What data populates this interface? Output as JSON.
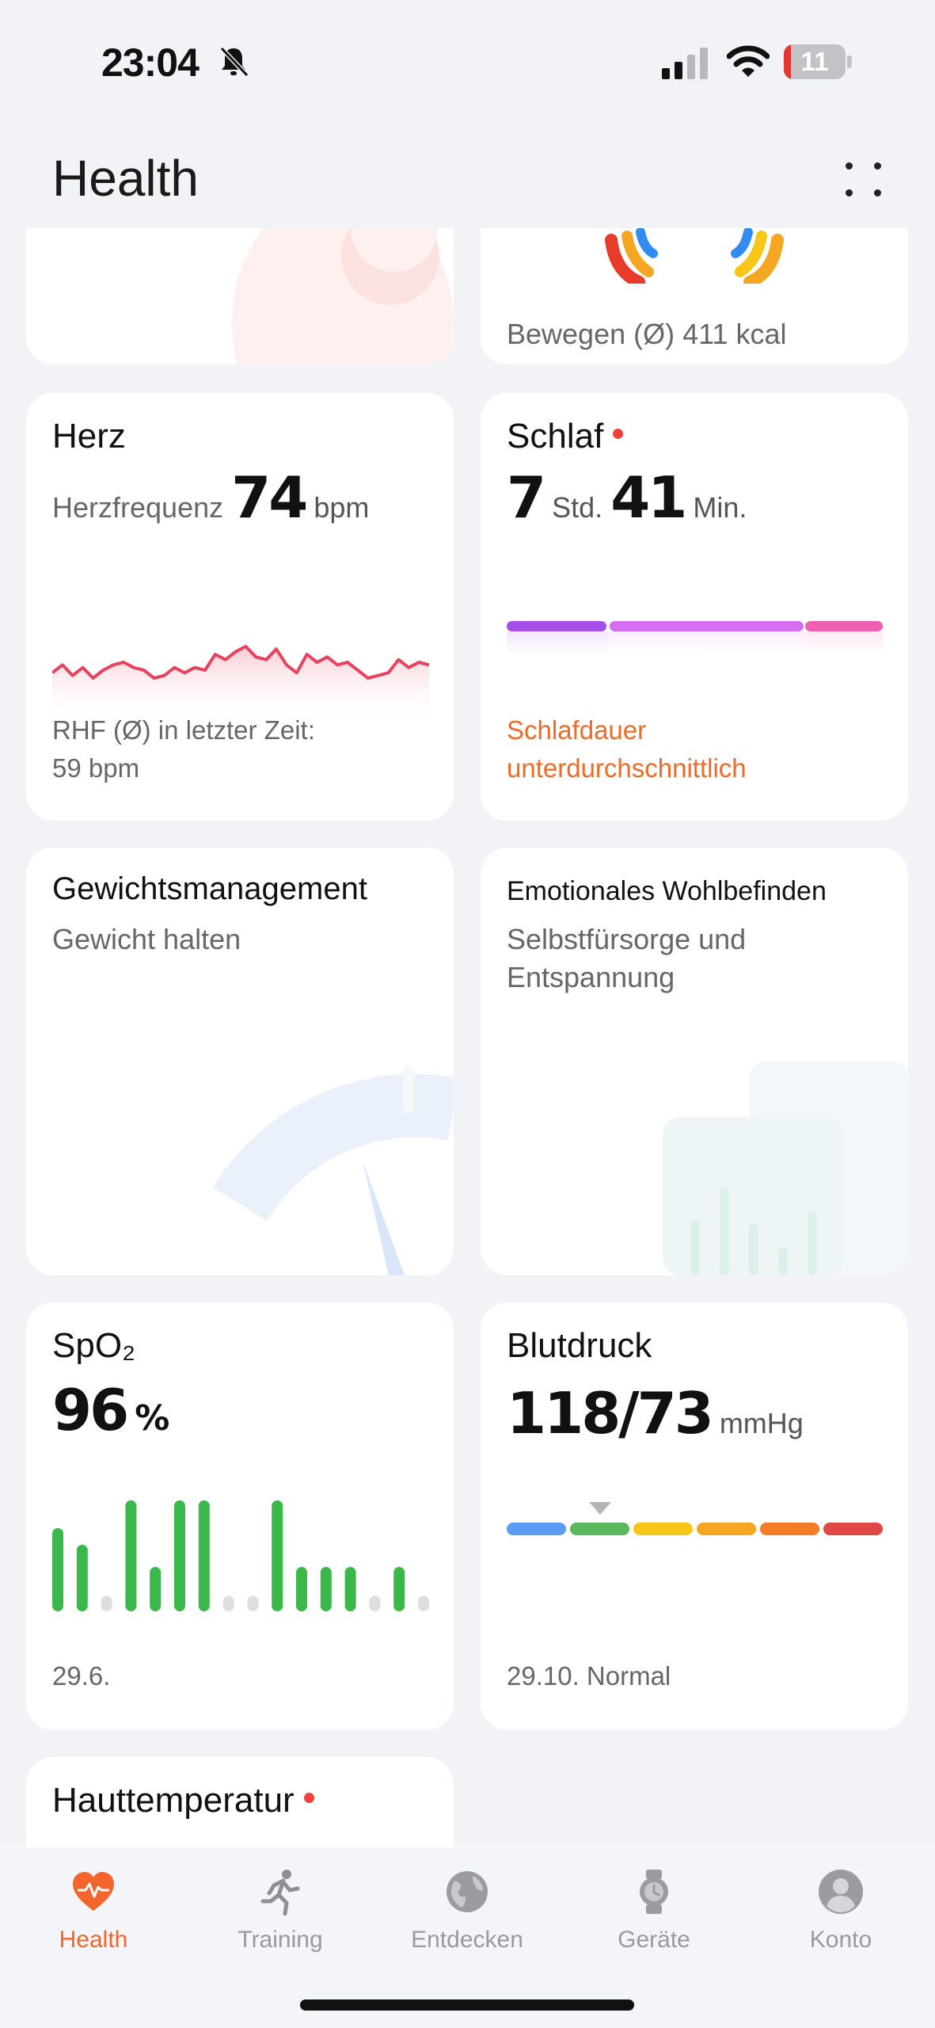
{
  "status": {
    "time": "23:04",
    "battery": "11",
    "battery_level": 0.11
  },
  "header": {
    "title": "Health"
  },
  "cards": {
    "top_right": {
      "text": "Bewegen (Ø) 411 kcal"
    },
    "heart": {
      "title": "Herz",
      "label": "Herzfrequenz",
      "value": "74",
      "unit": "bpm",
      "foot_line1": "RHF (Ø) in letzter Zeit:",
      "foot_line2": "59 bpm",
      "series": [
        65,
        68,
        64,
        67,
        63,
        66,
        68,
        69,
        67,
        66,
        63,
        64,
        67,
        65,
        67,
        66,
        72,
        70,
        73,
        75,
        71,
        70,
        74,
        68,
        65,
        72,
        69,
        71,
        68,
        69,
        66,
        63,
        64,
        65,
        70,
        67,
        69,
        68
      ]
    },
    "sleep": {
      "title": "Schlaf",
      "hours": "7",
      "hours_unit": "Std.",
      "minutes": "41",
      "minutes_unit": "Min.",
      "foot_line1": "Schlafdauer",
      "foot_line2": "unterdurchschnittlich",
      "segments": [
        {
          "fraction": 0.27,
          "color": "#a64fe8"
        },
        {
          "fraction": 0.52,
          "color": "#d56ef0"
        },
        {
          "fraction": 0.21,
          "color": "#ee5fb0"
        }
      ]
    },
    "weight": {
      "title": "Gewichtsmanagement",
      "subtitle": "Gewicht halten"
    },
    "emotion": {
      "title": "Emotionales Wohlbefinden",
      "subtitle_line1": "Selbstfürsorge und",
      "subtitle_line2": "Entspannung"
    },
    "spo2": {
      "title": "SpO₂",
      "value": "96",
      "unit": "%",
      "date": "29.6.",
      "bars": [
        {
          "level": 0.75,
          "active": true
        },
        {
          "level": 0.6,
          "active": true
        },
        {
          "level": 0.14,
          "active": false
        },
        {
          "level": 1.0,
          "active": true
        },
        {
          "level": 0.4,
          "active": true
        },
        {
          "level": 1.0,
          "active": true
        },
        {
          "level": 1.0,
          "active": true
        },
        {
          "level": 0.14,
          "active": false
        },
        {
          "level": 0.14,
          "active": false
        },
        {
          "level": 1.0,
          "active": true
        },
        {
          "level": 0.4,
          "active": true
        },
        {
          "level": 0.4,
          "active": true
        },
        {
          "level": 0.4,
          "active": true
        },
        {
          "level": 0.14,
          "active": false
        },
        {
          "level": 0.4,
          "active": true
        },
        {
          "level": 0.14,
          "active": false
        }
      ]
    },
    "blood_pressure": {
      "title": "Blutdruck",
      "value": "118/73",
      "unit": "mmHg",
      "foot": "29.10. Normal",
      "marker_segment": 1,
      "segments": [
        "#5b9cf2",
        "#5cb85c",
        "#f5c518",
        "#f5a623",
        "#f27c28",
        "#e04848"
      ]
    },
    "skin_temp": {
      "title": "Hauttemperatur"
    }
  },
  "tabs": [
    {
      "label": "Health",
      "icon": "heart-icon",
      "active": true
    },
    {
      "label": "Training",
      "icon": "running-icon",
      "active": false
    },
    {
      "label": "Entdecken",
      "icon": "globe-icon",
      "active": false
    },
    {
      "label": "Geräte",
      "icon": "watch-icon",
      "active": false
    },
    {
      "label": "Konto",
      "icon": "person-icon",
      "active": false
    }
  ],
  "colors": {
    "accent": "#f3652a",
    "heart_line": "#e8435e",
    "spo2_bar": "#3bb84a",
    "spo2_bar_inactive": "#dedede"
  }
}
